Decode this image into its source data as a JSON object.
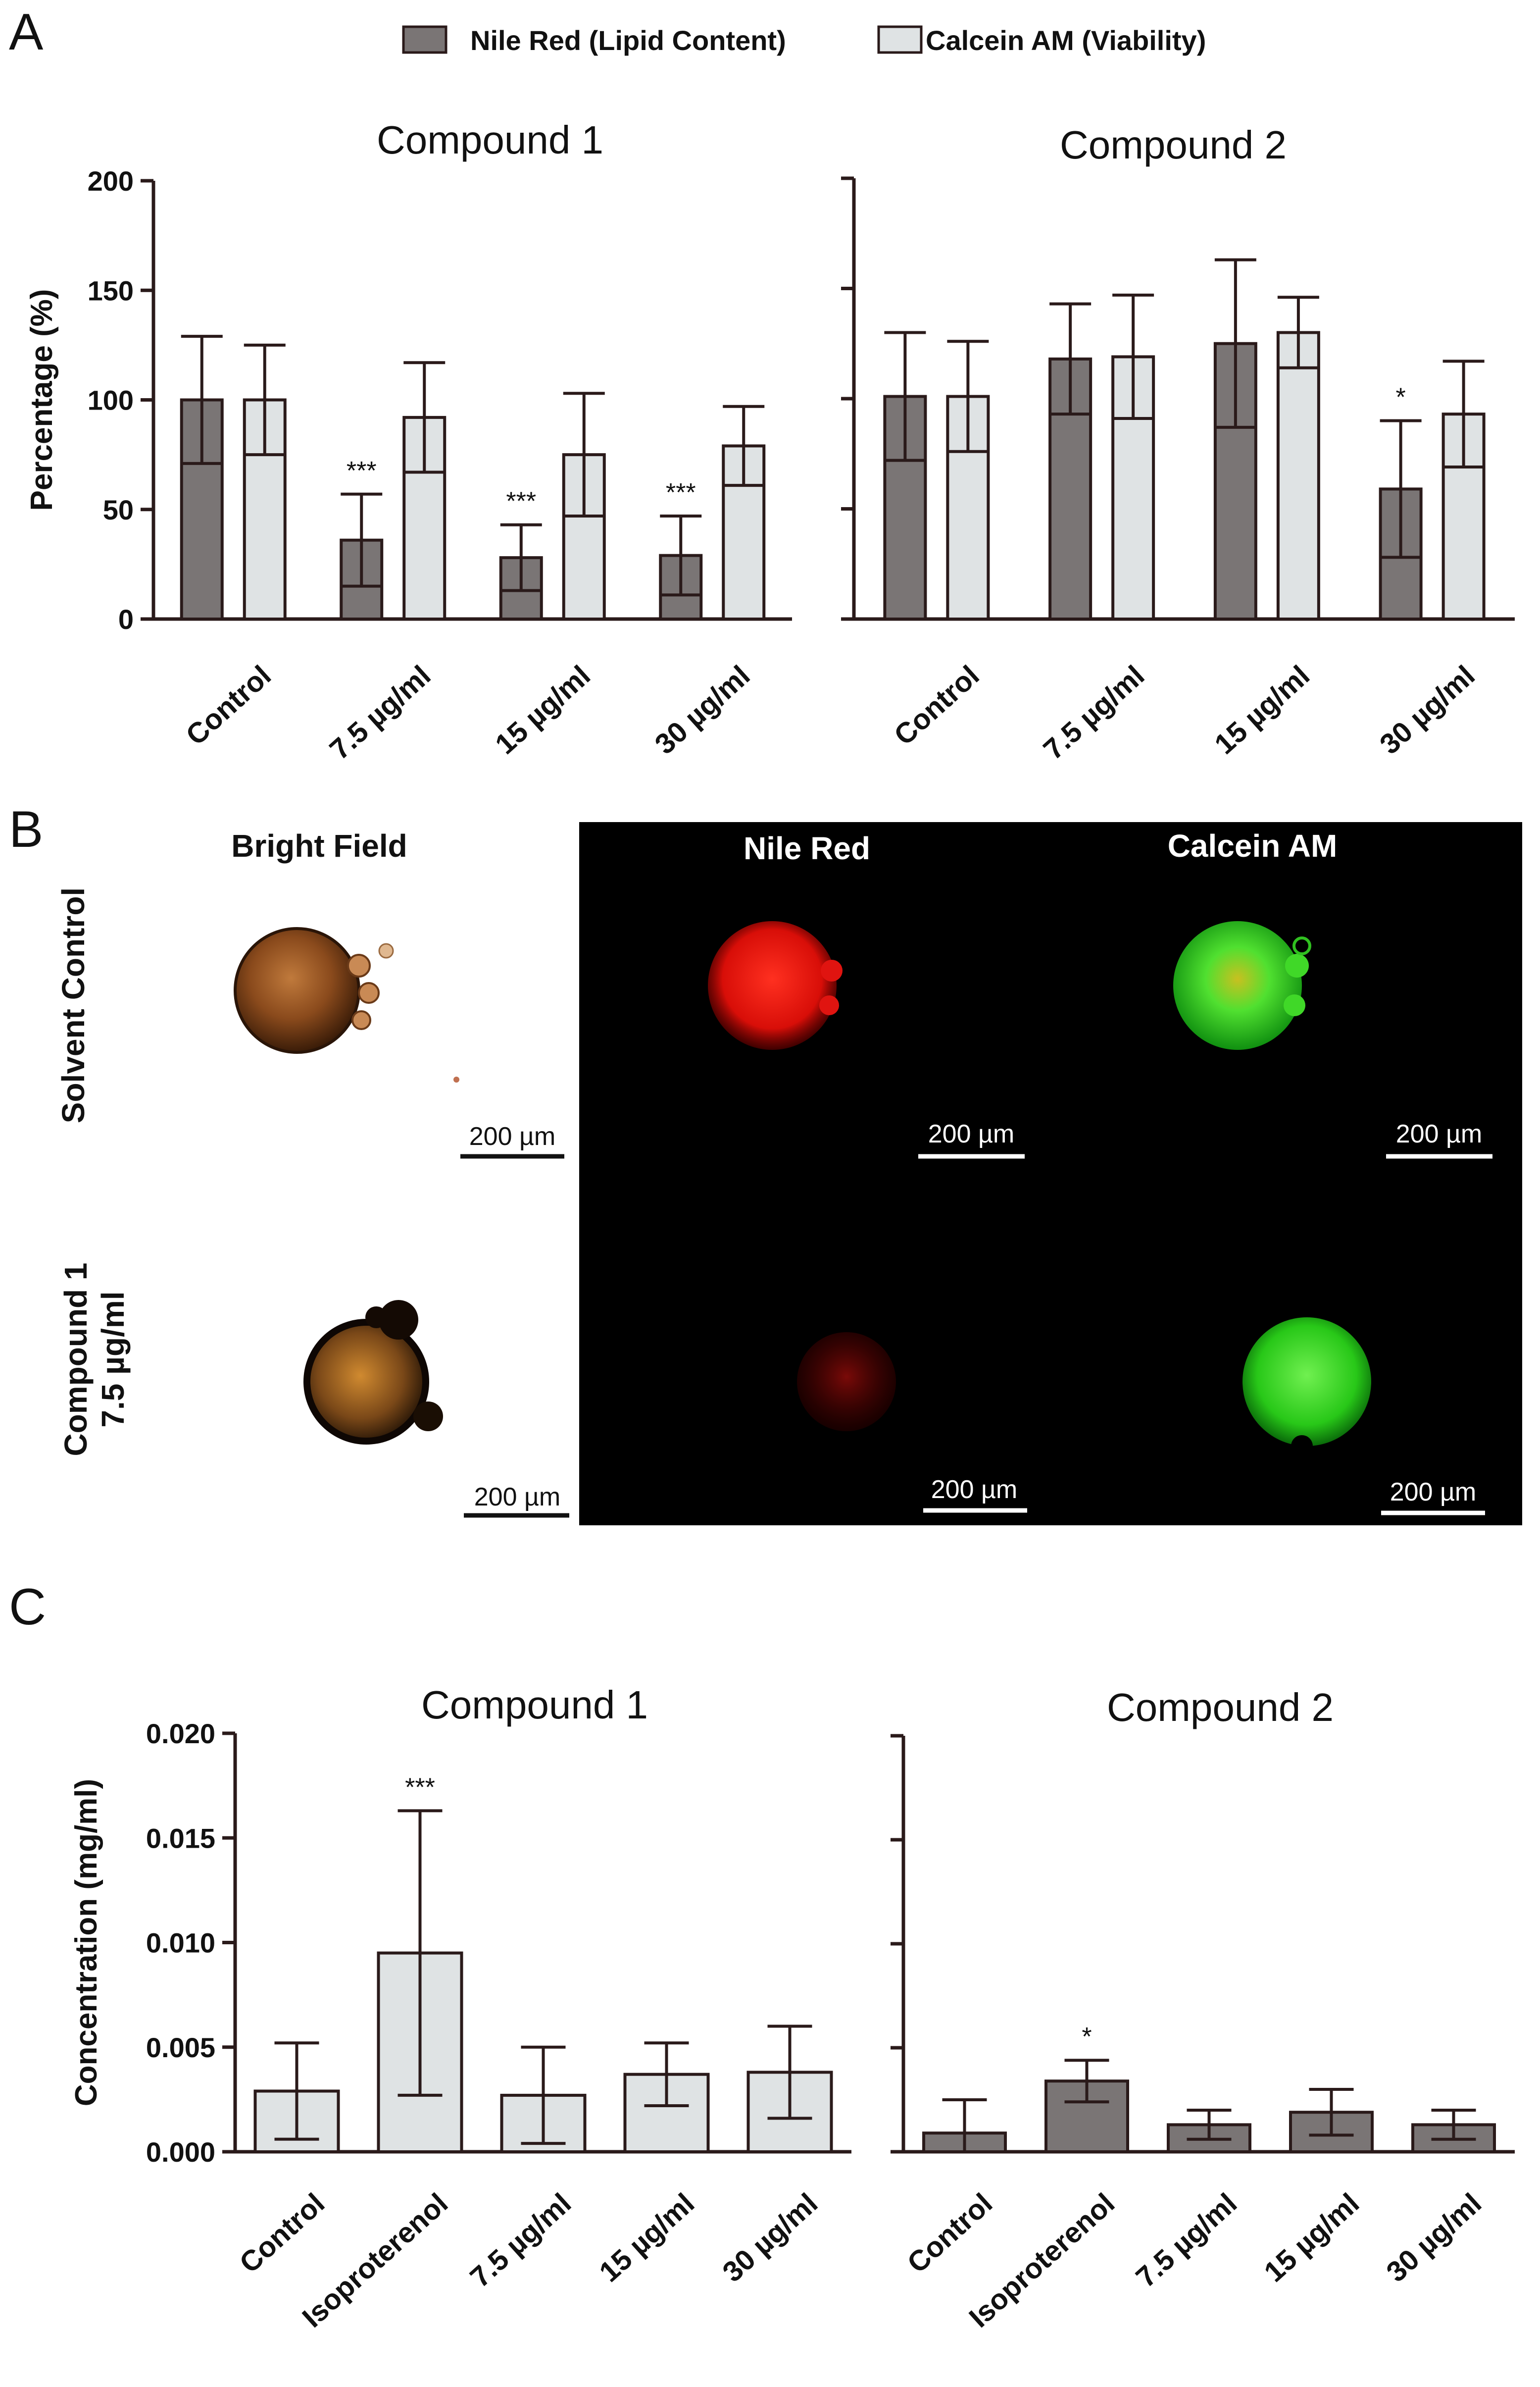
{
  "panels": {
    "a": "A",
    "b": "B",
    "c": "C"
  },
  "colors": {
    "dark_bar": "#7a7575",
    "light_bar": "#dfe3e4",
    "axis": "#2a1a1a",
    "black_bg": "#000000"
  },
  "legend": {
    "series1": "Nile Red (Lipid Content)",
    "series2": "Calcein AM (Viability)"
  },
  "chart_data": [
    {
      "id": "A-compound1",
      "type": "bar",
      "title": "Compound 1",
      "ylabel": "Percentage (%)",
      "ylim": [
        0,
        200
      ],
      "yticks": [
        0,
        50,
        100,
        150,
        200
      ],
      "categories": [
        "Control",
        "7.5 µg/ml",
        "15 µg/ml",
        "30 µg/ml"
      ],
      "series": [
        {
          "name": "Nile Red (Lipid Content)",
          "values": [
            100,
            36,
            28,
            29
          ],
          "errors": [
            29,
            21,
            15,
            18
          ]
        },
        {
          "name": "Calcein AM (Viability)",
          "values": [
            100,
            92,
            75,
            79
          ],
          "errors": [
            25,
            25,
            28,
            18
          ]
        }
      ],
      "annotations": [
        "",
        "***",
        "***",
        "***"
      ]
    },
    {
      "id": "A-compound2",
      "type": "bar",
      "title": "Compound 2",
      "ylabel": "",
      "ylim": [
        0,
        200
      ],
      "yticks": [
        0,
        50,
        100,
        150,
        200
      ],
      "categories": [
        "Control",
        "7.5 µg/ml",
        "15 µg/ml",
        "30 µg/ml"
      ],
      "series": [
        {
          "name": "Nile Red (Lipid Content)",
          "values": [
            101,
            118,
            125,
            59
          ],
          "errors": [
            29,
            25,
            38,
            31
          ]
        },
        {
          "name": "Calcein AM (Viability)",
          "values": [
            101,
            119,
            130,
            93
          ],
          "errors": [
            25,
            28,
            16,
            24
          ]
        }
      ],
      "annotations": [
        "",
        "",
        "",
        "*"
      ]
    },
    {
      "id": "C-compound1",
      "type": "bar",
      "title": "Compound 1",
      "ylabel": "Concentration (mg/ml)",
      "ylim": [
        0,
        0.02
      ],
      "yticks": [
        "0.000",
        "0.005",
        "0.010",
        "0.015",
        "0.020"
      ],
      "categories": [
        "Control",
        "Isoproterenol",
        "7.5 µg/ml",
        "15 µg/ml",
        "30 µg/ml"
      ],
      "values": [
        0.0029,
        0.0095,
        0.0027,
        0.0037,
        0.0038
      ],
      "errors": [
        0.0023,
        0.0068,
        0.0023,
        0.0015,
        0.0022
      ],
      "annotations": [
        "",
        "***",
        "",
        "",
        ""
      ]
    },
    {
      "id": "C-compound2",
      "type": "bar",
      "title": "Compound 2",
      "ylabel": "",
      "ylim": [
        0,
        0.02
      ],
      "categories": [
        "Control",
        "Isoproterenol",
        "7.5 µg/ml",
        "15 µg/ml",
        "30 µg/ml"
      ],
      "values": [
        0.0009,
        0.0034,
        0.0013,
        0.0019,
        0.0013
      ],
      "errors": [
        0.0016,
        0.001,
        0.0007,
        0.0011,
        0.0007
      ],
      "annotations": [
        "",
        "*",
        "",
        "",
        ""
      ]
    }
  ],
  "microscopy": {
    "columns": [
      "Bright Field",
      "Nile Red",
      "Calcein AM"
    ],
    "rows": [
      "Solvent Control",
      "Compound 1\n7.5 µg/ml"
    ],
    "row1": "Solvent Control",
    "row2_line1": "Compound 1",
    "row2_line2": "7.5 µg/ml",
    "scale_label": "200 µm"
  }
}
